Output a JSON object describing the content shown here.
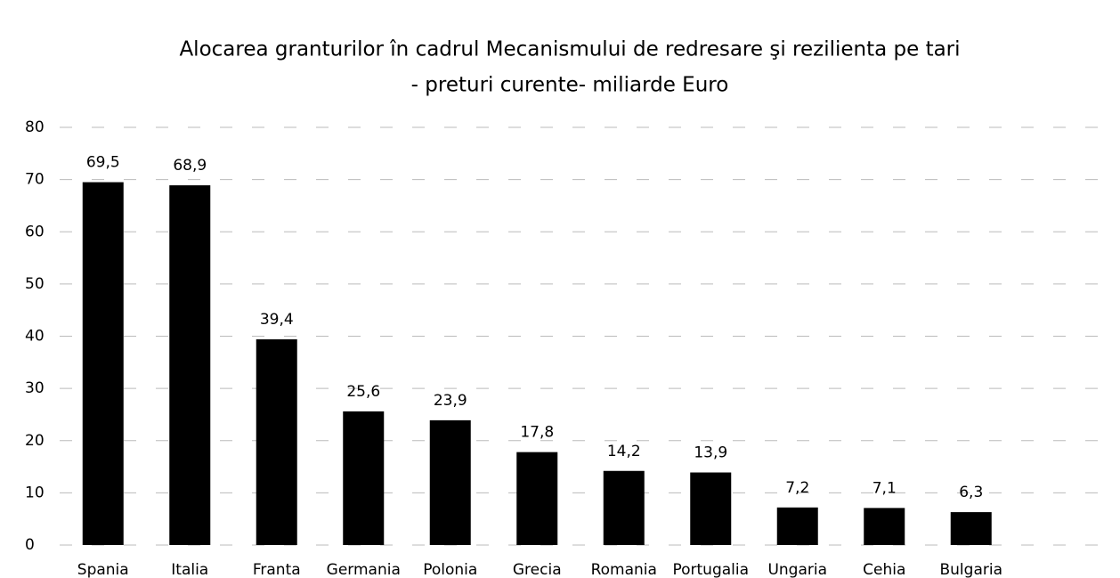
{
  "chart_data": {
    "type": "bar",
    "title": [
      "Alocarea granturilor în cadrul  Mecanismului de redresare şi rezilienta pe tari",
      "- preturi curente- miliarde Euro"
    ],
    "categories": [
      "Spania",
      "Italia",
      "Franta",
      "Germania",
      "Polonia",
      "Grecia",
      "Romania",
      "Portugalia",
      "Ungaria",
      "Cehia",
      "Bulgaria"
    ],
    "values": [
      69.5,
      68.9,
      39.4,
      25.6,
      23.9,
      17.8,
      14.2,
      13.9,
      7.2,
      7.1,
      6.3
    ],
    "value_labels": [
      "69,5",
      "68,9",
      "39,4",
      "25,6",
      "23,9",
      "17,8",
      "14,2",
      "13,9",
      "7,2",
      "7,1",
      "6,3"
    ],
    "color": "#000000",
    "ylim": [
      0,
      80
    ],
    "yticks": [
      0,
      10,
      20,
      30,
      40,
      50,
      60,
      70,
      80
    ],
    "grid": true
  }
}
